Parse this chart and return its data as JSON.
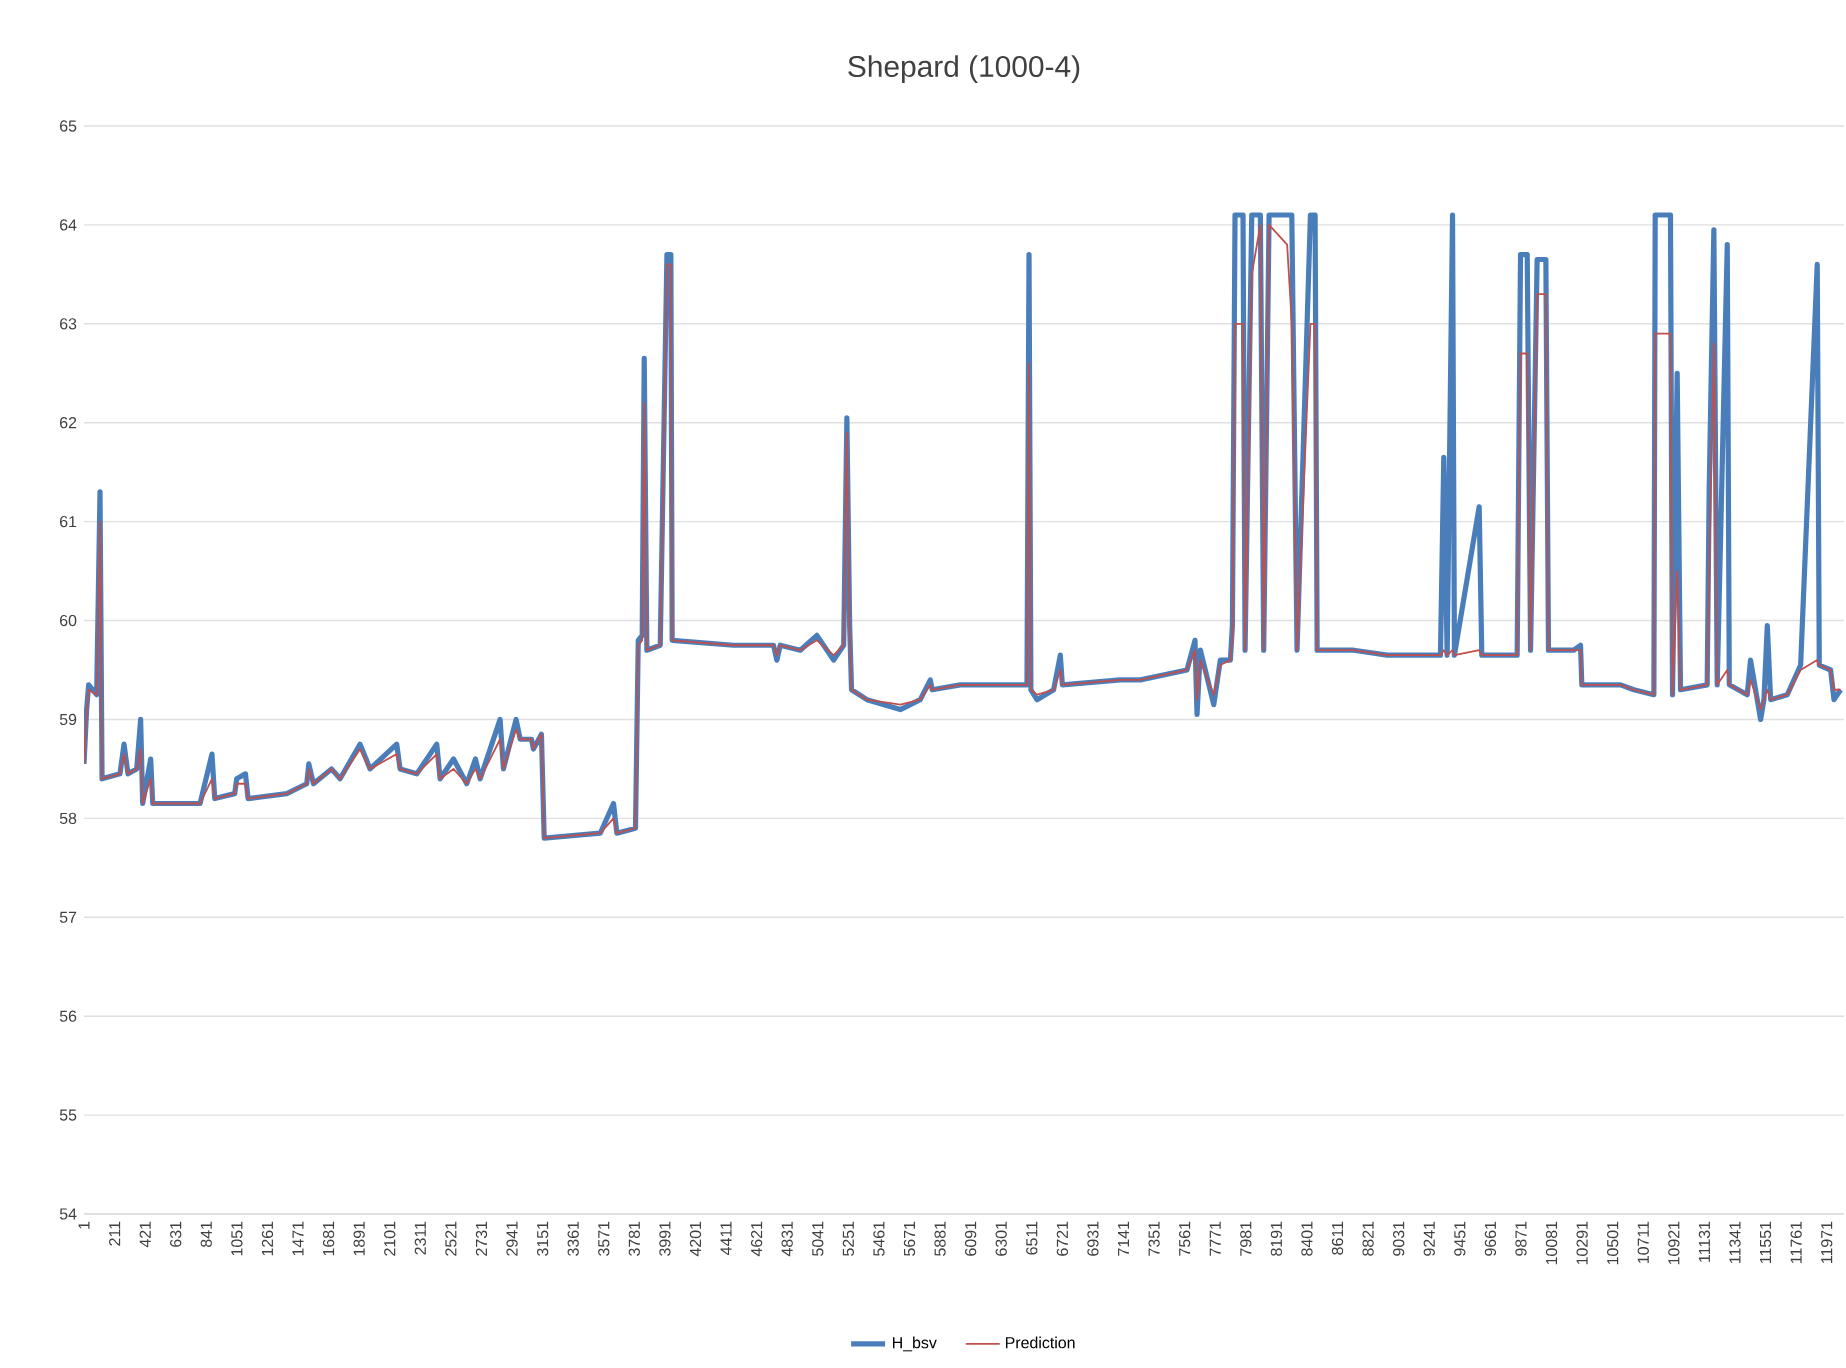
{
  "chart_data": {
    "type": "line",
    "title": "Shepard (1000-4)",
    "x": [
      1,
      19,
      33,
      88,
      111,
      125,
      248,
      276,
      303,
      363,
      390,
      404,
      459,
      473,
      798,
      880,
      899,
      1036,
      1050,
      1110,
      1128,
      1394,
      1531,
      1545,
      1577,
      1701,
      1760,
      1897,
      1966,
      2149,
      2172,
      2287,
      2424,
      2447,
      2539,
      2630,
      2690,
      2722,
      2859,
      2882,
      2969,
      2997,
      3075,
      3088,
      3143,
      3162,
      3547,
      3638,
      3661,
      3789,
      3808,
      3835,
      3849,
      3867,
      3959,
      4005,
      4032,
      4041,
      4463,
      4737,
      4760,
      4783,
      4921,
      5035,
      5150,
      5219,
      5241,
      5260,
      5273,
      5379,
      5608,
      5745,
      5814,
      5827,
      6020,
      6478,
      6492,
      6505,
      6547,
      6661,
      6707,
      6721,
      7119,
      7257,
      7577,
      7632,
      7646,
      7669,
      7761,
      7806,
      7875,
      7889,
      7907,
      7962,
      7976,
      8022,
      8081,
      8104,
      8141,
      8265,
      8297,
      8333,
      8425,
      8457,
      8471,
      8723,
      8952,
      9318,
      9341,
      9364,
      9401,
      9414,
      9584,
      9602,
      9845,
      9868,
      9914,
      9937,
      9982,
      10042,
      10060,
      10234,
      10280,
      10289,
      10555,
      10647,
      10784,
      10793,
      10898,
      10912,
      10944,
      10967,
      11150,
      11164,
      11196,
      11219,
      11288,
      11302,
      11425,
      11448,
      11517,
      11540,
      11563,
      11586,
      11700,
      11792,
      11906,
      11920,
      11998,
      12021,
      12067
    ],
    "series": [
      {
        "name": "H_bsv",
        "color": "#4a7ebb",
        "values": [
          58.55,
          59.1,
          59.35,
          59.25,
          61.3,
          58.4,
          58.45,
          58.75,
          58.45,
          58.5,
          59.0,
          58.15,
          58.6,
          58.15,
          58.15,
          58.65,
          58.2,
          58.25,
          58.4,
          58.45,
          58.2,
          58.25,
          58.35,
          58.55,
          58.35,
          58.5,
          58.4,
          58.75,
          58.5,
          58.75,
          58.5,
          58.45,
          58.75,
          58.4,
          58.6,
          58.35,
          58.6,
          58.4,
          59.0,
          58.5,
          59.0,
          58.8,
          58.8,
          58.7,
          58.85,
          57.8,
          57.85,
          58.15,
          57.85,
          57.9,
          59.8,
          59.85,
          62.65,
          59.7,
          59.75,
          63.7,
          63.7,
          59.8,
          59.75,
          59.75,
          59.6,
          59.75,
          59.7,
          59.85,
          59.6,
          59.75,
          62.05,
          59.95,
          59.3,
          59.2,
          59.1,
          59.2,
          59.4,
          59.3,
          59.35,
          59.35,
          63.7,
          59.3,
          59.2,
          59.3,
          59.65,
          59.35,
          59.4,
          59.4,
          59.5,
          59.8,
          59.05,
          59.7,
          59.15,
          59.6,
          59.6,
          59.95,
          64.1,
          64.1,
          59.7,
          64.1,
          64.1,
          59.7,
          64.1,
          64.1,
          64.1,
          59.7,
          64.1,
          64.1,
          59.7,
          59.7,
          59.65,
          59.65,
          61.65,
          59.65,
          64.1,
          59.65,
          61.15,
          59.65,
          59.65,
          63.7,
          63.7,
          59.7,
          63.65,
          63.65,
          59.7,
          59.7,
          59.75,
          59.35,
          59.35,
          59.3,
          59.25,
          64.1,
          64.1,
          59.25,
          62.5,
          59.3,
          59.35,
          61.35,
          63.95,
          59.35,
          63.8,
          59.35,
          59.25,
          59.6,
          59.0,
          59.2,
          59.95,
          59.2,
          59.25,
          59.55,
          63.6,
          59.55,
          59.5,
          59.2,
          59.3
        ]
      },
      {
        "name": "Prediction",
        "color": "#c0504d",
        "values": [
          58.55,
          59.05,
          59.3,
          59.25,
          61.0,
          58.4,
          58.45,
          58.65,
          58.45,
          58.5,
          58.7,
          58.15,
          58.4,
          58.15,
          58.15,
          58.4,
          58.2,
          58.25,
          58.35,
          58.35,
          58.2,
          58.25,
          58.35,
          58.5,
          58.35,
          58.5,
          58.4,
          58.7,
          58.5,
          58.65,
          58.5,
          58.45,
          58.65,
          58.4,
          58.5,
          58.35,
          58.5,
          58.4,
          58.8,
          58.5,
          58.9,
          58.8,
          58.8,
          58.7,
          58.85,
          57.8,
          57.85,
          58.0,
          57.85,
          57.9,
          59.75,
          59.8,
          62.2,
          59.7,
          59.75,
          63.6,
          63.6,
          59.8,
          59.75,
          59.75,
          59.65,
          59.75,
          59.7,
          59.8,
          59.65,
          59.75,
          61.9,
          59.9,
          59.3,
          59.2,
          59.15,
          59.2,
          59.35,
          59.3,
          59.35,
          59.35,
          62.6,
          59.3,
          59.25,
          59.3,
          59.5,
          59.35,
          59.4,
          59.4,
          59.5,
          59.7,
          59.2,
          59.6,
          59.25,
          59.55,
          59.6,
          59.8,
          63.0,
          63.0,
          59.7,
          63.5,
          64.0,
          59.7,
          64.0,
          63.8,
          63.0,
          59.7,
          63.0,
          63.0,
          59.7,
          59.7,
          59.65,
          59.65,
          59.7,
          59.65,
          59.7,
          59.65,
          59.7,
          59.65,
          59.65,
          62.7,
          62.7,
          59.7,
          63.3,
          63.3,
          59.7,
          59.7,
          59.7,
          59.35,
          59.35,
          59.3,
          59.25,
          62.9,
          62.9,
          59.25,
          60.5,
          59.3,
          59.35,
          60.5,
          62.8,
          59.35,
          59.5,
          59.35,
          59.25,
          59.4,
          59.1,
          59.2,
          59.3,
          59.2,
          59.25,
          59.5,
          59.6,
          59.55,
          59.5,
          59.3,
          59.3
        ]
      }
    ],
    "xlim": [
      1,
      12090
    ],
    "xticks": [
      1,
      211,
      421,
      631,
      841,
      1051,
      1261,
      1471,
      1681,
      1891,
      2101,
      2311,
      2521,
      2731,
      2941,
      3151,
      3361,
      3571,
      3781,
      3991,
      4201,
      4411,
      4621,
      4831,
      5041,
      5251,
      5461,
      5671,
      5881,
      6091,
      6301,
      6511,
      6721,
      6931,
      7141,
      7351,
      7561,
      7771,
      7981,
      8191,
      8401,
      8611,
      8821,
      9031,
      9241,
      9451,
      9661,
      9871,
      10081,
      10291,
      10501,
      10711,
      10921,
      11131,
      11341,
      11551,
      11761,
      11971
    ],
    "ylim": [
      54,
      65
    ],
    "yticks": [
      54,
      55,
      56,
      57,
      58,
      59,
      60,
      61,
      62,
      63,
      64,
      65
    ],
    "grid": "y",
    "legend": "bottom"
  }
}
